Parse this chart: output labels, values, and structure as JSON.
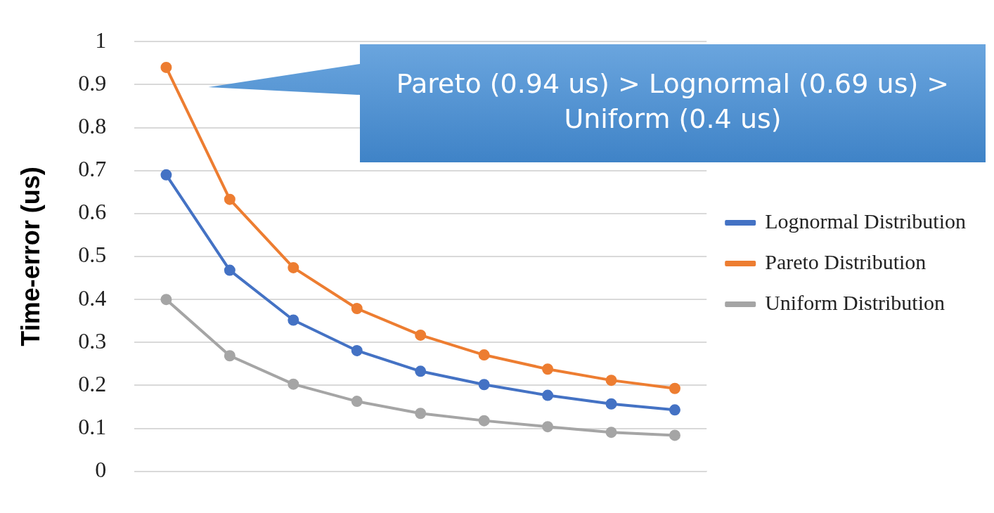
{
  "chart_data": {
    "type": "line",
    "ylabel": "Time-error (us)",
    "categories": [
      null,
      null,
      null,
      null,
      null,
      null,
      null,
      null,
      null
    ],
    "series": [
      {
        "name": "Lognormal Distribution",
        "color": "#4472c4",
        "values": [
          0.69,
          0.468,
          0.352,
          0.281,
          0.233,
          0.202,
          0.177,
          0.157,
          0.143
        ]
      },
      {
        "name": "Pareto Distribution",
        "color": "#ed7d31",
        "values": [
          0.94,
          0.633,
          0.474,
          0.379,
          0.317,
          0.271,
          0.238,
          0.212,
          0.193
        ]
      },
      {
        "name": "Uniform Distribution",
        "color": "#a5a5a5",
        "values": [
          0.4,
          0.269,
          0.203,
          0.163,
          0.135,
          0.118,
          0.104,
          0.091,
          0.084
        ]
      }
    ],
    "ylim": [
      0,
      1
    ],
    "yticks": [
      0,
      0.1,
      0.2,
      0.3,
      0.4,
      0.5,
      0.6,
      0.7,
      0.8,
      0.9,
      1
    ],
    "grid": "y",
    "legend": "right",
    "marker": "circle",
    "line_style": "solid",
    "annotations": [
      "Pareto (0.94 us) > Lognormal (0.69 us) > Uniform (0.4 us)"
    ]
  }
}
